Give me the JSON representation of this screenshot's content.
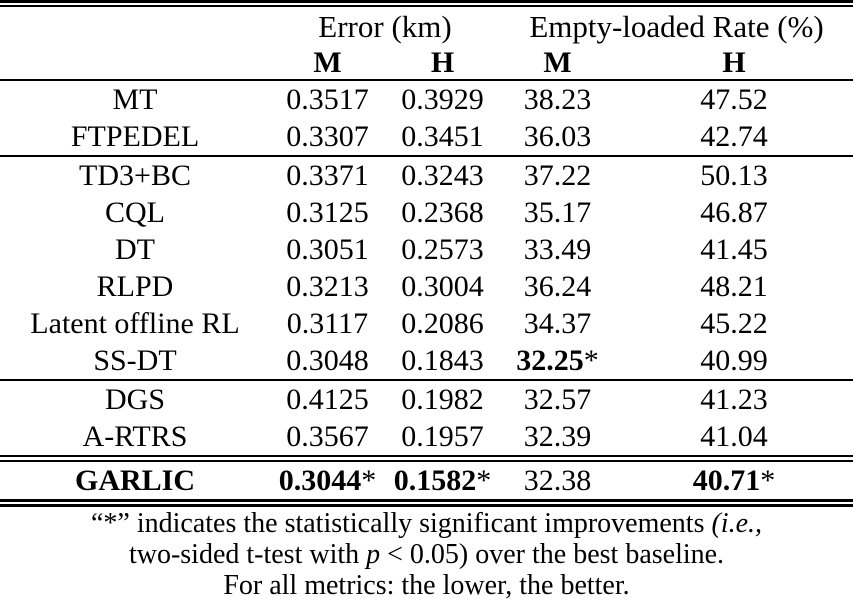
{
  "table": {
    "header": {
      "groups": [
        {
          "label": "Error (km)"
        },
        {
          "label": "Empty-loaded Rate (%)"
        }
      ],
      "subcolumns": [
        "M",
        "H",
        "M",
        "H"
      ]
    },
    "rows": [
      {
        "label": "MT",
        "cells": [
          {
            "v": "0.3517"
          },
          {
            "v": "0.3929"
          },
          {
            "v": "38.23"
          },
          {
            "v": "47.52"
          }
        ]
      },
      {
        "label": "FTPEDEL",
        "cells": [
          {
            "v": "0.3307"
          },
          {
            "v": "0.3451"
          },
          {
            "v": "36.03"
          },
          {
            "v": "42.74"
          }
        ]
      },
      {
        "label": "TD3+BC",
        "cells": [
          {
            "v": "0.3371"
          },
          {
            "v": "0.3243"
          },
          {
            "v": "37.22"
          },
          {
            "v": "50.13"
          }
        ]
      },
      {
        "label": "CQL",
        "cells": [
          {
            "v": "0.3125"
          },
          {
            "v": "0.2368"
          },
          {
            "v": "35.17"
          },
          {
            "v": "46.87"
          }
        ]
      },
      {
        "label": "DT",
        "cells": [
          {
            "v": "0.3051"
          },
          {
            "v": "0.2573"
          },
          {
            "v": "33.49"
          },
          {
            "v": "41.45"
          }
        ]
      },
      {
        "label": "RLPD",
        "cells": [
          {
            "v": "0.3213"
          },
          {
            "v": "0.3004"
          },
          {
            "v": "36.24"
          },
          {
            "v": "48.21"
          }
        ]
      },
      {
        "label": "Latent offline RL",
        "cells": [
          {
            "v": "0.3117"
          },
          {
            "v": "0.2086"
          },
          {
            "v": "34.37"
          },
          {
            "v": "45.22"
          }
        ]
      },
      {
        "label": "SS-DT",
        "cells": [
          {
            "v": "0.3048"
          },
          {
            "v": "0.1843"
          },
          {
            "v": "32.25",
            "star": "*"
          },
          {
            "v": "40.99"
          }
        ]
      },
      {
        "label": "DGS",
        "cells": [
          {
            "v": "0.4125"
          },
          {
            "v": "0.1982"
          },
          {
            "v": "32.57"
          },
          {
            "v": "41.23"
          }
        ]
      },
      {
        "label": "A-RTRS",
        "cells": [
          {
            "v": "0.3567"
          },
          {
            "v": "0.1957"
          },
          {
            "v": "32.39"
          },
          {
            "v": "41.04"
          }
        ]
      },
      {
        "label": "GARLIC",
        "cells": [
          {
            "v": "0.3044",
            "star": "*"
          },
          {
            "v": "0.1582",
            "star": "*"
          },
          {
            "v": "32.38"
          },
          {
            "v": "40.71",
            "star": "*"
          }
        ]
      }
    ]
  },
  "footnote": {
    "line1_pre": "“*” indicates the statistically significant improvements ",
    "line1_italic": "(i.e.,",
    "line2_pre": "two-sided t-test with ",
    "line2_var": "p",
    "line2_post": " < 0.05) over the best baseline.",
    "line3": "For all metrics: the lower, the better."
  },
  "colors": {
    "text": "#000000",
    "background": "#ffffff",
    "rule": "#000000"
  }
}
